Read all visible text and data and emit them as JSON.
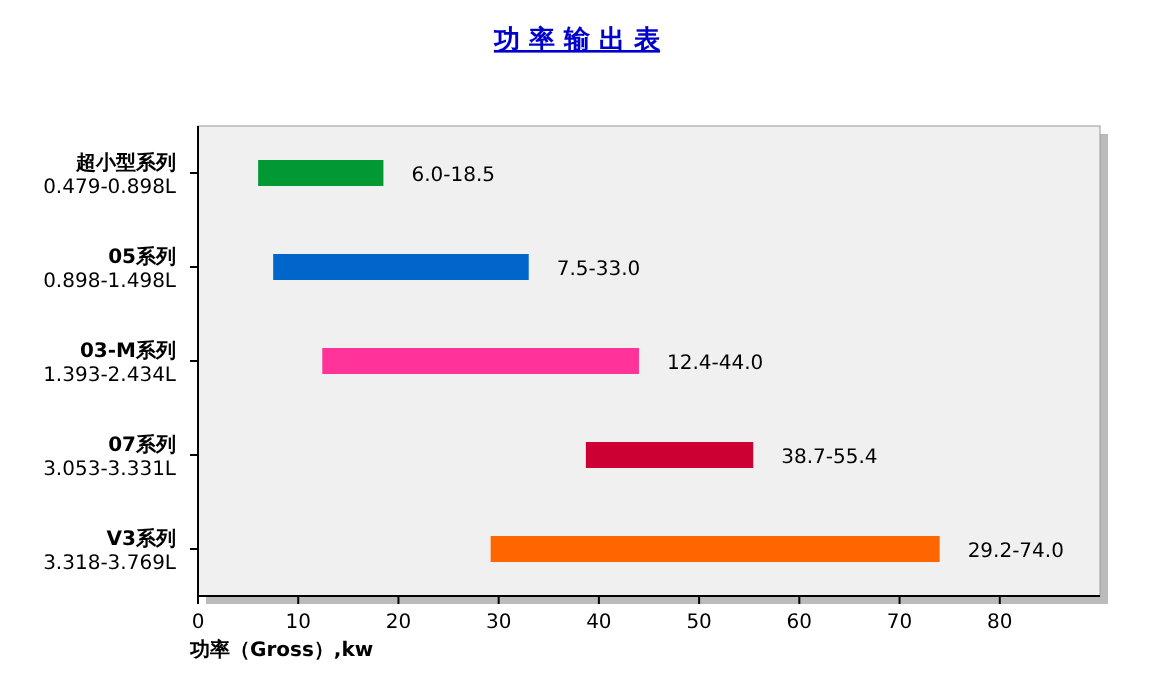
{
  "chart_data": {
    "type": "bar",
    "orientation": "horizontal",
    "title": "功 率 输 出 表",
    "xlabel": "功率（Gross）,kw",
    "categories": [
      "超小型系列\n0.479-0.898L",
      "05系列\n0.898-1.498L",
      "03-M系列\n1.393-2.434L",
      "07系列\n3.053-3.331L",
      "V3系列\n3.318-3.769L"
    ],
    "base": [
      6.0,
      7.5,
      12.4,
      38.7,
      29.2
    ],
    "values": [
      12.5,
      25.5,
      31.6,
      16.7,
      44.8
    ],
    "colors": [
      "#009933",
      "#0066cc",
      "#ff3399",
      "#cc0033",
      "#ff6600"
    ],
    "value_labels": [
      "6.0-18.5",
      "7.5-33.0",
      "12.4-44.0",
      "38.7-55.4",
      "29.2-74.0"
    ],
    "xlim": [
      0,
      90
    ],
    "xticks": [
      0,
      10,
      20,
      30,
      40,
      50,
      60,
      70,
      80
    ],
    "grid": false
  }
}
